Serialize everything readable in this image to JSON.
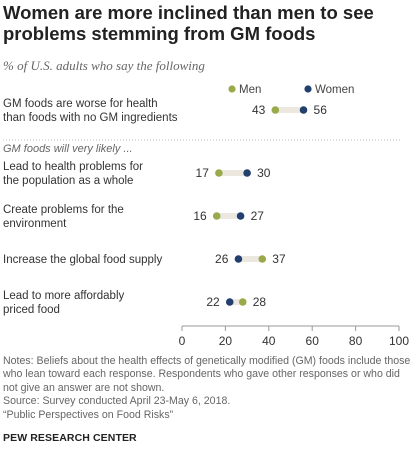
{
  "title": "Women are more inclined than men to see problems stemming from GM foods",
  "subtitle": "% of U.S. adults who say the following",
  "chart_data": {
    "type": "dot",
    "x_ticks": [
      0,
      20,
      40,
      60,
      80,
      100
    ],
    "xlim": [
      0,
      100
    ],
    "legend": {
      "position": "top-right"
    },
    "series": [
      {
        "name": "Men",
        "color": "#9aaa4a"
      },
      {
        "name": "Women",
        "color": "#233f6e"
      }
    ],
    "group_label": "GM foods will very likely ...",
    "rows": [
      {
        "label": [
          "GM foods are worse for health",
          "than foods with no GM ingredients"
        ],
        "men": 43,
        "women": 56
      },
      {
        "label": [
          "Lead to health problems for",
          "the population as a whole"
        ],
        "men": 17,
        "women": 30
      },
      {
        "label": [
          "Create problems for the",
          "environment"
        ],
        "men": 16,
        "women": 27
      },
      {
        "label": [
          "Increase the global food supply"
        ],
        "men": 37,
        "women": 26
      },
      {
        "label": [
          "Lead to more affordably",
          "priced food"
        ],
        "men": 28,
        "women": 22
      }
    ]
  },
  "notes": [
    "Notes: Beliefs about the health effects of genetically modified (GM) foods include those who lean toward each response. Respondents who gave other responses or who did not give an answer are not shown.",
    "Source: Survey conducted April 23-May 6, 2018.",
    "“Public Perspectives on Food Risks”"
  ],
  "footer": "PEW RESEARCH CENTER"
}
